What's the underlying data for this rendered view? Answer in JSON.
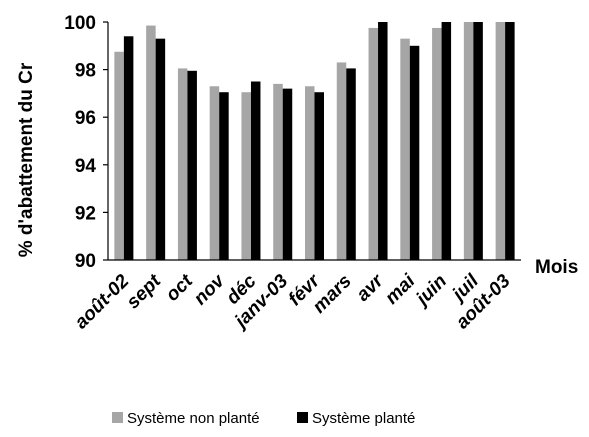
{
  "chart_data": {
    "type": "bar",
    "categories": [
      "août-02",
      "sept",
      "oct",
      "nov",
      "déc",
      "janv-03",
      "févr",
      "mars",
      "avr",
      "mai",
      "juin",
      "juil",
      "août-03"
    ],
    "series": [
      {
        "name": "Système non planté",
        "color": "#a6a6a6",
        "values": [
          98.75,
          99.85,
          98.05,
          97.3,
          97.05,
          97.4,
          97.3,
          98.3,
          99.75,
          99.3,
          99.75,
          100,
          100
        ]
      },
      {
        "name": "Système planté",
        "color": "#000000",
        "values": [
          99.4,
          99.3,
          97.95,
          97.05,
          97.5,
          97.2,
          97.05,
          98.05,
          100,
          99.0,
          100,
          100,
          100
        ]
      }
    ],
    "ylabel": "% d'abattement du Cr",
    "xlabel": "Mois",
    "ylim": [
      90,
      100
    ],
    "yticks": [
      90,
      92,
      94,
      96,
      98,
      100
    ],
    "grid": false,
    "legend": "bottom"
  }
}
